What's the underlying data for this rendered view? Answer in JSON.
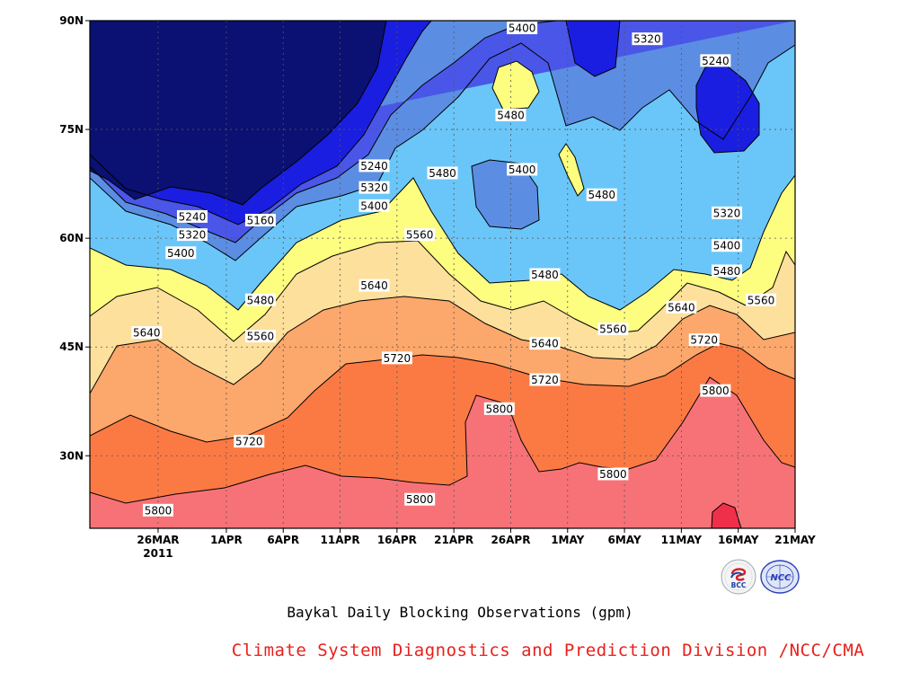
{
  "chart_data": {
    "type": "heatmap",
    "title": "",
    "xlabel": "",
    "ylabel": "",
    "x_tick_labels": [
      "26MAR",
      "1APR",
      "6APR",
      "11APR",
      "16APR",
      "21APR",
      "26APR",
      "1MAY",
      "6MAY",
      "11MAY",
      "16MAY",
      "21MAY"
    ],
    "x_year_label": "2011",
    "y_tick_labels": [
      "30N",
      "45N",
      "60N",
      "75N",
      "90N"
    ],
    "ylim": [
      20,
      90
    ],
    "contour_levels": [
      5160,
      5240,
      5320,
      5400,
      5480,
      5560,
      5640,
      5720,
      5800,
      5880
    ],
    "fill_colors": {
      "lt5160": "#0a1172",
      "5160_5240": "#1a1ee0",
      "5240_5320": "#4a56e8",
      "5320_5400": "#5b8de3",
      "5400_5480": "#6ac6f9",
      "5480_5560": "#fdfd80",
      "5560_5640": "#fde09c",
      "5640_5720": "#fca76b",
      "5720_5800": "#fb7a44",
      "5800_5880": "#f77277",
      "gt5880": "#f0304a"
    },
    "contour_labels": [
      {
        "value": "5160",
        "date": "4APR",
        "lat": 62.5
      },
      {
        "value": "5240",
        "date": "29MAR",
        "lat": 63
      },
      {
        "value": "5320",
        "date": "29MAR",
        "lat": 60.5
      },
      {
        "value": "5400",
        "date": "28MAR",
        "lat": 58
      },
      {
        "value": "5480",
        "date": "4APR",
        "lat": 51.5
      },
      {
        "value": "5560",
        "date": "4APR",
        "lat": 46.5
      },
      {
        "value": "5640",
        "date": "25MAR",
        "lat": 47
      },
      {
        "value": "5720",
        "date": "3APR",
        "lat": 32
      },
      {
        "value": "5800",
        "date": "26MAR",
        "lat": 22.5
      },
      {
        "value": "5240",
        "date": "14APR",
        "lat": 70
      },
      {
        "value": "5320",
        "date": "14APR",
        "lat": 67
      },
      {
        "value": "5400",
        "date": "14APR",
        "lat": 64.5
      },
      {
        "value": "5560",
        "date": "18APR",
        "lat": 60.5
      },
      {
        "value": "5640",
        "date": "14APR",
        "lat": 53.5
      },
      {
        "value": "5720",
        "date": "16APR",
        "lat": 43.5
      },
      {
        "value": "5800",
        "date": "18APR",
        "lat": 24
      },
      {
        "value": "5480",
        "date": "20APR",
        "lat": 69
      },
      {
        "value": "5400",
        "date": "27APR",
        "lat": 89
      },
      {
        "value": "5480",
        "date": "26APR",
        "lat": 77
      },
      {
        "value": "5400",
        "date": "27APR",
        "lat": 69.5
      },
      {
        "value": "5800",
        "date": "25APR",
        "lat": 36.5
      },
      {
        "value": "5480",
        "date": "4MAY",
        "lat": 66
      },
      {
        "value": "5480",
        "date": "29APR",
        "lat": 55
      },
      {
        "value": "5640",
        "date": "29APR",
        "lat": 45.5
      },
      {
        "value": "5720",
        "date": "29APR",
        "lat": 40.5
      },
      {
        "value": "5560",
        "date": "5MAY",
        "lat": 47.5
      },
      {
        "value": "5800",
        "date": "5MAY",
        "lat": 27.5
      },
      {
        "value": "5320",
        "date": "8MAY",
        "lat": 87.5
      },
      {
        "value": "5240",
        "date": "14MAY",
        "lat": 84.5
      },
      {
        "value": "5320",
        "date": "15MAY",
        "lat": 63.5
      },
      {
        "value": "5400",
        "date": "15MAY",
        "lat": 59
      },
      {
        "value": "5480",
        "date": "15MAY",
        "lat": 55.5
      },
      {
        "value": "5560",
        "date": "18MAY",
        "lat": 51.5
      },
      {
        "value": "5640",
        "date": "11MAY",
        "lat": 50.5
      },
      {
        "value": "5720",
        "date": "13MAY",
        "lat": 46
      },
      {
        "value": "5800",
        "date": "14MAY",
        "lat": 39
      }
    ]
  },
  "caption": "Baykal Daily Blocking Observations (gpm)",
  "credit": "Climate System Diagnostics and Prediction Division /NCC/CMA",
  "logos": {
    "left_text": "BCC",
    "right_text": "NCC",
    "left_icon": "bcc-logo-icon",
    "right_icon": "ncc-logo-icon"
  }
}
